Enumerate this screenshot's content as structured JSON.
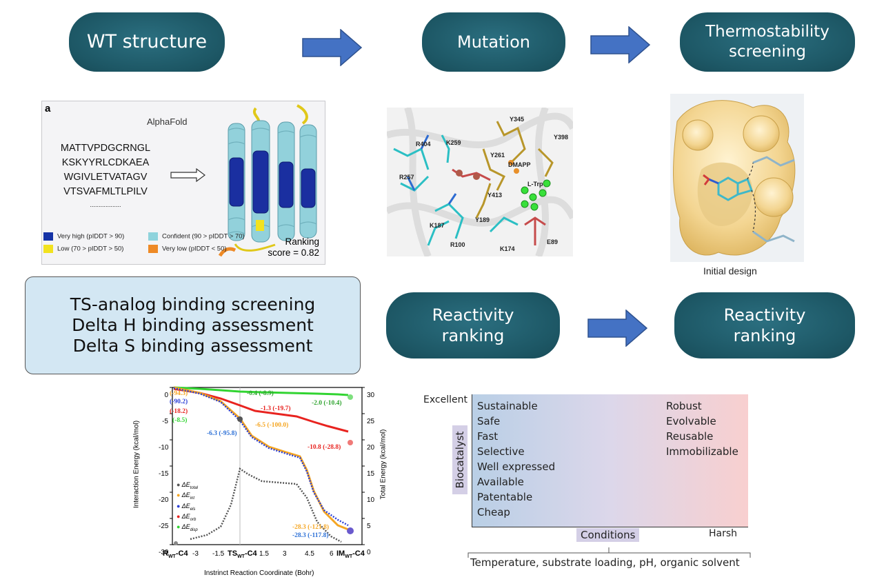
{
  "flow": {
    "wt_structure": "WT structure",
    "mutation": "Mutation",
    "thermo_line1": "Thermostability",
    "thermo_line2": "screening",
    "reactivity1_line1": "Reactivity",
    "reactivity1_line2": "ranking",
    "reactivity2_line1": "Reactivity",
    "reactivity2_line2": "ranking"
  },
  "screening_box": {
    "line1": "TS-analog binding screening",
    "line2": "Delta H binding assessment",
    "line3": "Delta S binding assessment"
  },
  "alphafold": {
    "panel_label": "a",
    "title": "AlphaFold",
    "sequence": [
      "MATTVPDGCRNGL",
      "KSKYYRLCDKAEA",
      "WGIVLETVATAGV",
      "VTSVAFMLTLPILV"
    ],
    "ellipsis": "..................",
    "legend": [
      {
        "label": "Very high (pIDDT > 90)",
        "color": "#1533a6"
      },
      {
        "label": "Confident (90 > pIDDT > 70)",
        "color": "#8fd3dc"
      },
      {
        "label": "Low (70 > pIDDT > 50)",
        "color": "#f2e21f"
      },
      {
        "label": "Very low (pIDDT < 50)",
        "color": "#ee8a26"
      }
    ],
    "ranking_line1": "Ranking",
    "ranking_line2": "score = 0.82"
  },
  "mutation_panel": {
    "residue_labels": [
      "R404",
      "K259",
      "Y345",
      "Y398",
      "Y261",
      "DMAPP",
      "R257",
      "L-Trp",
      "Y413",
      "K187",
      "Y189",
      "R100",
      "K174",
      "E89"
    ]
  },
  "initial_design": {
    "caption": "Initial design"
  },
  "energy_plot": {
    "y_left_label": "Interaction Energy (kcal/mol)",
    "y_right_label": "Total Energy (kcal/mol)",
    "x_label": "Instrinct Reaction Coordinate (Bohr)",
    "x_ticks": [
      "-3",
      "-1.5",
      "1.5",
      "3",
      "4.5",
      "6"
    ],
    "x_special": {
      "r": "R",
      "r_sub": "WT",
      "r_tail": "-C4",
      "ts": "TS",
      "ts_sub": "WT",
      "ts_tail": "-C4",
      "im": "IM",
      "im_sub": "WT",
      "im_tail": "-C4"
    },
    "y_left_ticks": [
      "0",
      "-5",
      "-10",
      "-15",
      "-20",
      "-25",
      "-30"
    ],
    "y_right_ticks": [
      "30",
      "25",
      "20",
      "15",
      "10",
      "5",
      "0"
    ],
    "legend": [
      {
        "label": "ΔE",
        "sub": "total",
        "color": "#555555"
      },
      {
        "label": "ΔE",
        "sub": "int",
        "color": "#f5a623"
      },
      {
        "label": "ΔE",
        "sub": "els",
        "color": "#2b3fd6"
      },
      {
        "label": "ΔE",
        "sub": "orb",
        "color": "#e8231f"
      },
      {
        "label": "ΔE",
        "sub": "disp",
        "color": "#31d431"
      }
    ],
    "annotations": {
      "a1": "(-94.3)",
      "a2": "(-90.2)",
      "a3": "(-18.2)",
      "a4": "(-8.5)",
      "a5": "-0.4 (-8.9)",
      "a6": "-1.3 (-19.7)",
      "a7": "-6.5 (-100.0)",
      "a8": "-6.3 (-95.8)",
      "a9": "-2.0 (-10.4)",
      "a10": "-10.8 (-28.8)",
      "a11": "-28.3 (-121.8)",
      "a12": "-28.3 (-117.8)"
    }
  },
  "bio_chart": {
    "excellent": "Excellent",
    "harsh": "Harsh",
    "y_label": "Biocatalyst",
    "x_label": "Conditions",
    "left_items": [
      "Sustainable",
      "Safe",
      "Fast",
      "Selective",
      "Well expressed",
      "Available",
      "Patentable",
      "Cheap"
    ],
    "right_items": [
      "Robust",
      "Evolvable",
      "Reusable",
      "Immobilizable"
    ],
    "bracket_text": "Temperature, substrate loading, pH, organic solvent"
  }
}
